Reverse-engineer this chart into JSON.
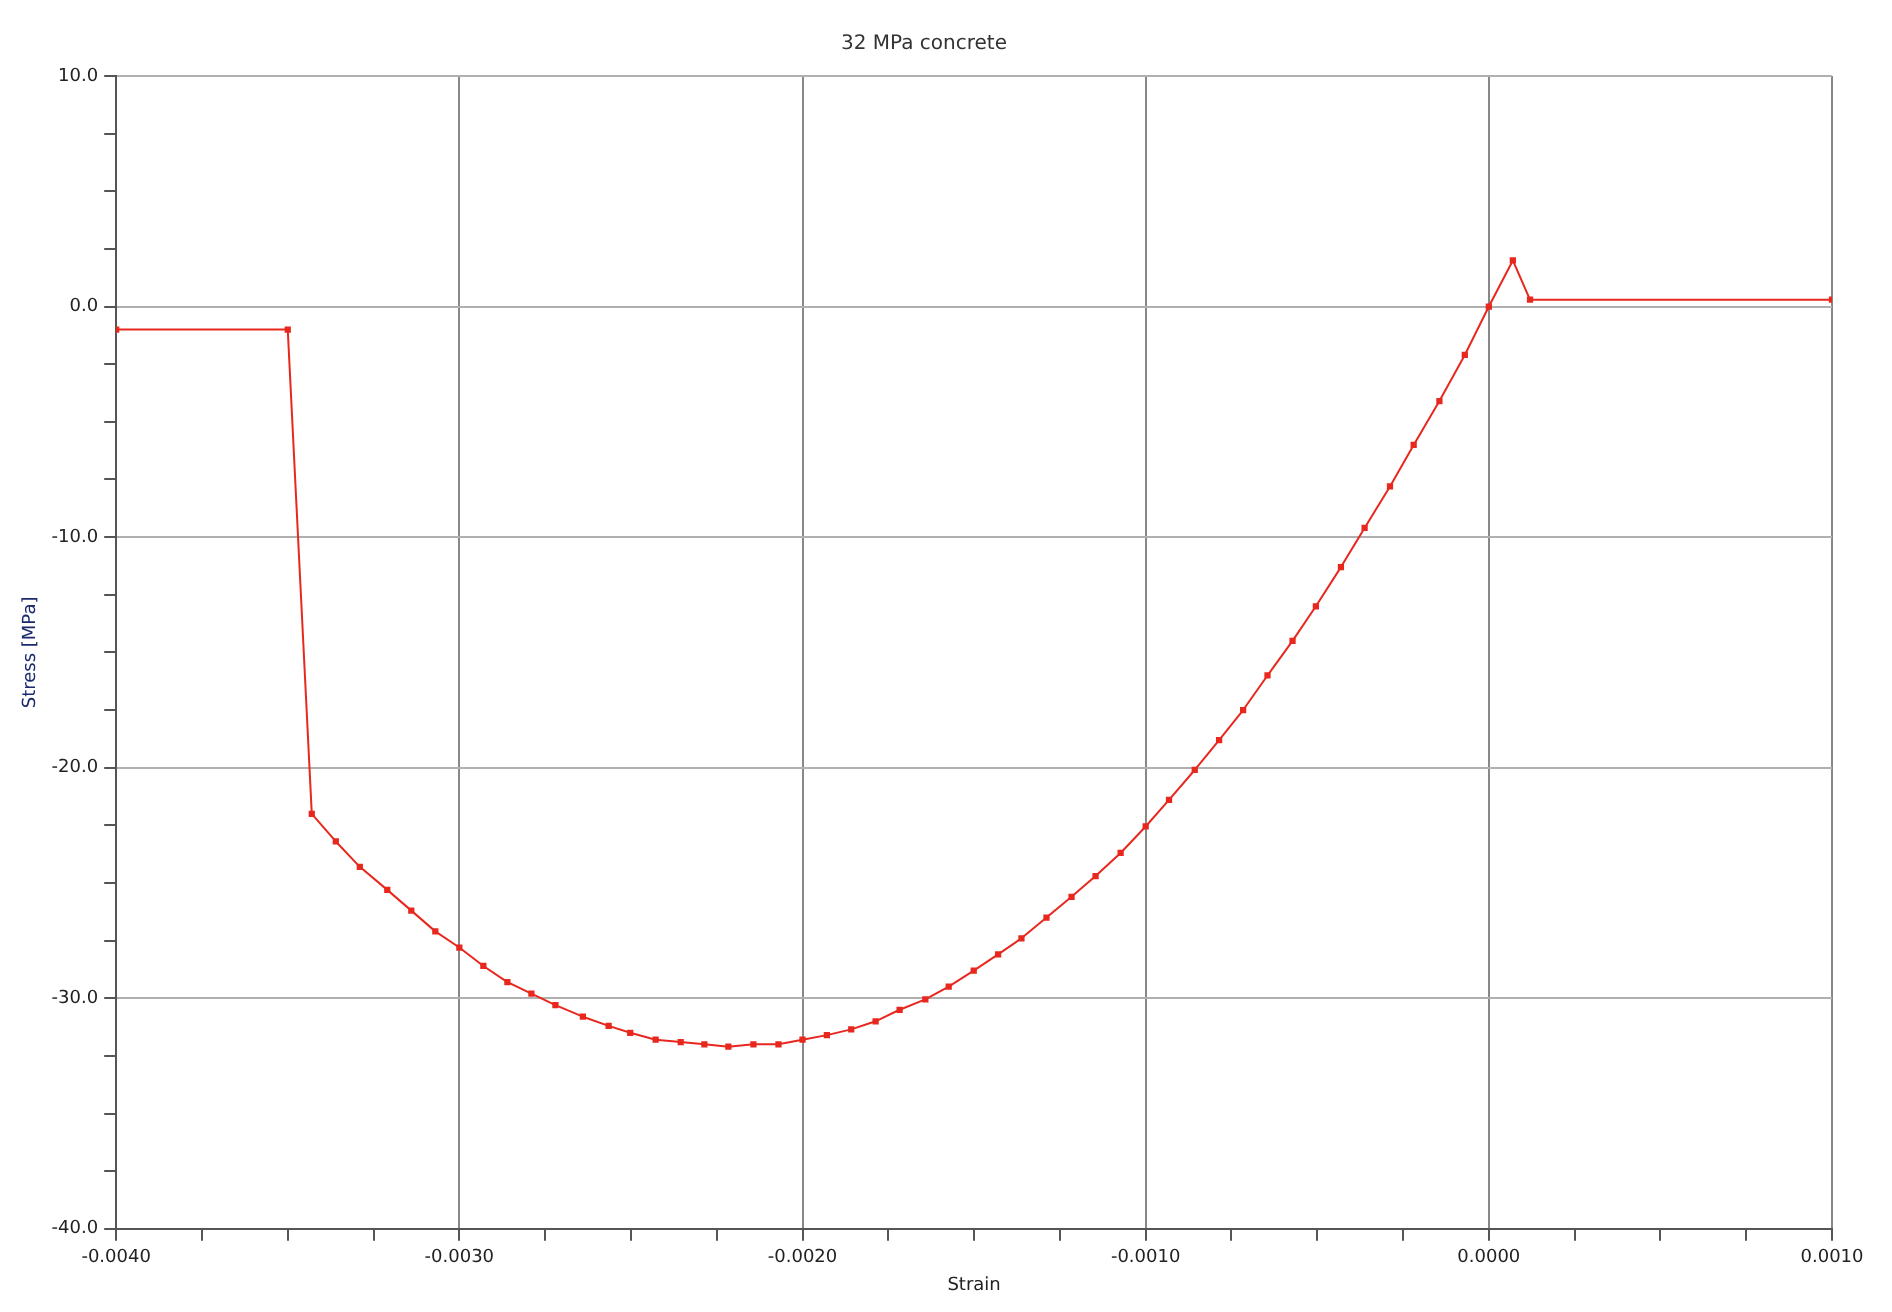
{
  "chart_data": {
    "type": "line",
    "title": "32 MPa concrete",
    "xlabel": "Strain",
    "ylabel": "Stress [MPa]",
    "series": [
      {
        "color": "#e8281e",
        "x": [
          -0.004,
          -0.0035,
          -0.00343,
          -0.00336,
          -0.00329,
          -0.00321,
          -0.00314,
          -0.00307,
          -0.003,
          -0.00293,
          -0.00286,
          -0.00279,
          -0.00272,
          -0.00264,
          -0.002565,
          -0.002502,
          -0.002428,
          -0.002355,
          -0.002286,
          -0.002216,
          -0.002143,
          -0.00207,
          -0.002,
          -0.001929,
          -0.001858,
          -0.001787,
          -0.001717,
          -0.001642,
          -0.001574,
          -0.001501,
          -0.00143,
          -0.001362,
          -0.001289,
          -0.001216,
          -0.001146,
          -0.001073,
          -0.001,
          -0.000932,
          -0.000857,
          -0.000786,
          -0.000716,
          -0.000645,
          -0.000572,
          -0.000504,
          -0.000431,
          -0.000362,
          -0.000288,
          -0.000219,
          -0.000144,
          -7e-05,
          0,
          7e-05,
          0.00012,
          0.001
        ],
        "values": [
          -1.0,
          -1.0,
          -22.0,
          -23.2,
          -24.3,
          -25.3,
          -26.2,
          -27.1,
          -27.8,
          -28.6,
          -29.3,
          -29.8,
          -30.3,
          -30.8,
          -31.2,
          -31.5,
          -31.8,
          -31.9,
          -32.0,
          -32.1,
          -32.0,
          -32.0,
          -31.8,
          -31.6,
          -31.35,
          -31.0,
          -30.5,
          -30.05,
          -29.5,
          -28.8,
          -28.1,
          -27.4,
          -26.5,
          -25.6,
          -24.7,
          -23.7,
          -22.55,
          -21.4,
          -20.1,
          -18.8,
          -17.5,
          -16.0,
          -14.5,
          -13.0,
          -11.3,
          -9.6,
          -7.8,
          -6.0,
          -4.1,
          -2.1,
          0.0,
          2.0,
          0.3,
          0.3
        ]
      }
    ],
    "xlim": [
      -0.004,
      0.001
    ],
    "xticks": [
      {
        "value": -0.004,
        "label": "-0.0040"
      },
      {
        "value": -0.00375,
        "label": null
      },
      {
        "value": -0.0035,
        "label": null
      },
      {
        "value": -0.00325,
        "label": null
      },
      {
        "value": -0.003,
        "label": "-0.0030"
      },
      {
        "value": -0.00275,
        "label": null
      },
      {
        "value": -0.0025,
        "label": null
      },
      {
        "value": -0.00225,
        "label": null
      },
      {
        "value": -0.002,
        "label": "-0.0020"
      },
      {
        "value": -0.00175,
        "label": null
      },
      {
        "value": -0.0015,
        "label": null
      },
      {
        "value": -0.00125,
        "label": null
      },
      {
        "value": -0.001,
        "label": "-0.0010"
      },
      {
        "value": -0.00075,
        "label": null
      },
      {
        "value": -0.0005,
        "label": null
      },
      {
        "value": -0.00025,
        "label": null
      },
      {
        "value": 0,
        "label": "0.0000"
      },
      {
        "value": 0.00025,
        "label": null
      },
      {
        "value": 0.0005,
        "label": null
      },
      {
        "value": 0.00075,
        "label": null
      },
      {
        "value": 0.001,
        "label": "0.0010"
      }
    ],
    "ylim": [
      -40,
      10
    ],
    "yticks": [
      {
        "value": -40,
        "label": "-40.0"
      },
      {
        "value": -37.5,
        "label": null
      },
      {
        "value": -35,
        "label": null
      },
      {
        "value": -32.5,
        "label": null
      },
      {
        "value": -30,
        "label": "-30.0"
      },
      {
        "value": -27.5,
        "label": null
      },
      {
        "value": -25,
        "label": null
      },
      {
        "value": -22.5,
        "label": null
      },
      {
        "value": -20,
        "label": "-20.0"
      },
      {
        "value": -17.5,
        "label": null
      },
      {
        "value": -15,
        "label": null
      },
      {
        "value": -12.5,
        "label": null
      },
      {
        "value": -10,
        "label": "-10.0"
      },
      {
        "value": -7.5,
        "label": null
      },
      {
        "value": -5,
        "label": null
      },
      {
        "value": -2.5,
        "label": null
      },
      {
        "value": 0,
        "label": "0.0"
      },
      {
        "value": 2.5,
        "label": null
      },
      {
        "value": 5,
        "label": null
      },
      {
        "value": 7.5,
        "label": null
      },
      {
        "value": 10,
        "label": "10.0"
      }
    ],
    "grid": true,
    "legend": false,
    "marker": "square",
    "line_style": "solid"
  }
}
